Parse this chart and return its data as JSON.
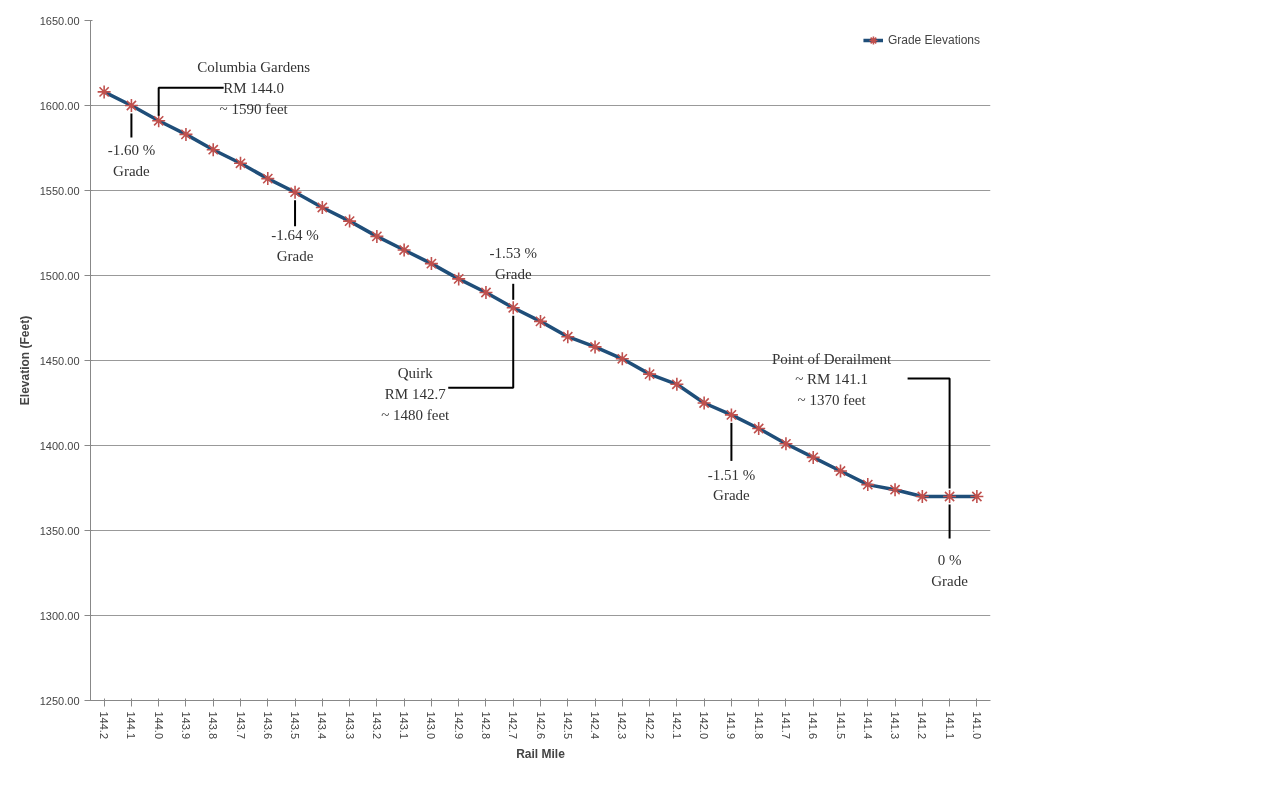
{
  "chart_data": {
    "type": "line",
    "xlabel": "Rail Mile",
    "ylabel": "Elevation (Feet)",
    "categories": [
      "144.2",
      "144.1",
      "144.0",
      "143.9",
      "143.8",
      "143.7",
      "143.6",
      "143.5",
      "143.4",
      "143.3",
      "143.2",
      "143.1",
      "143.0",
      "142.9",
      "142.8",
      "142.7",
      "142.6",
      "142.5",
      "142.4",
      "142.3",
      "142.2",
      "142.1",
      "142.0",
      "141.9",
      "141.8",
      "141.7",
      "141.6",
      "141.5",
      "141.4",
      "141.3",
      "141.2",
      "141.1",
      "141.0"
    ],
    "series": [
      {
        "name": "Grade Elevations",
        "color": "#1f4e79",
        "colors": [
          "#c0504d",
          "#c0504d",
          "#c0504d",
          "#c0504d",
          "#c0504d",
          "#c0504d",
          "#c0504d",
          "#c0504d",
          "#c0504d",
          "#c0504d",
          "#c0504d",
          "#c0504d",
          "#c0504d",
          "#c0504d",
          "#c0504d",
          "#c0504d",
          "#c0504d",
          "#c0504d",
          "#c0504d",
          "#c0504d",
          "#c0504d",
          "#c0504d",
          "#c0504d",
          "#c0504d",
          "#c0504d",
          "#c0504d",
          "#c0504d",
          "#c0504d",
          "#c0504d",
          "#c0504d",
          "#c0504d",
          "#c0504d",
          "#c0504d"
        ],
        "values": [
          1608,
          1600,
          1591,
          1583,
          1574,
          1566,
          1557,
          1549,
          1540,
          1532,
          1523,
          1515,
          1507,
          1498,
          1490,
          1481,
          1473,
          1464,
          1458,
          1451,
          1442,
          1436,
          1425,
          1418,
          1410,
          1401,
          1393,
          1385,
          1377,
          1374,
          1370,
          1370,
          1370
        ]
      }
    ],
    "ylim": [
      1250,
      1650
    ],
    "yticks": [
      {
        "value": 1250,
        "label": "1250.00"
      },
      {
        "value": 1300,
        "label": "1300.00"
      },
      {
        "value": 1350,
        "label": "1350.00"
      },
      {
        "value": 1400,
        "label": "1400.00"
      },
      {
        "value": 1450,
        "label": "1450.00"
      },
      {
        "value": 1500,
        "label": "1500.00"
      },
      {
        "value": 1550,
        "label": "1550.00"
      },
      {
        "value": 1600,
        "label": "1600.00"
      },
      {
        "value": 1650,
        "label": "1650.00"
      }
    ],
    "grid": "y",
    "legend": "top right",
    "marker": "cross",
    "line_style": "solid",
    "annotations": [
      {
        "text": "Columbia Gardens\nRM 144.0\n~ 1590 feet",
        "x": "144.0",
        "y": 1591
      },
      {
        "text": "-1.60 %\nGrade",
        "x": "144.1",
        "y": 1600
      },
      {
        "text": "-1.64 %\nGrade",
        "x": "143.5",
        "y": 1549
      },
      {
        "text": "-1.53 %\nGrade",
        "x": "142.7",
        "y": 1481
      },
      {
        "text": "Quirk\nRM 142.7\n~ 1480 feet",
        "x": "142.7",
        "y": 1481
      },
      {
        "text": "-1.51 %\nGrade",
        "x": "141.9",
        "y": 1418
      },
      {
        "text": "Point of Derailment\n~ RM 141.1\n~ 1370 feet",
        "x": "141.1",
        "y": 1370
      },
      {
        "text": "0 %\nGrade",
        "x": "141.1",
        "y": 1370
      }
    ]
  }
}
